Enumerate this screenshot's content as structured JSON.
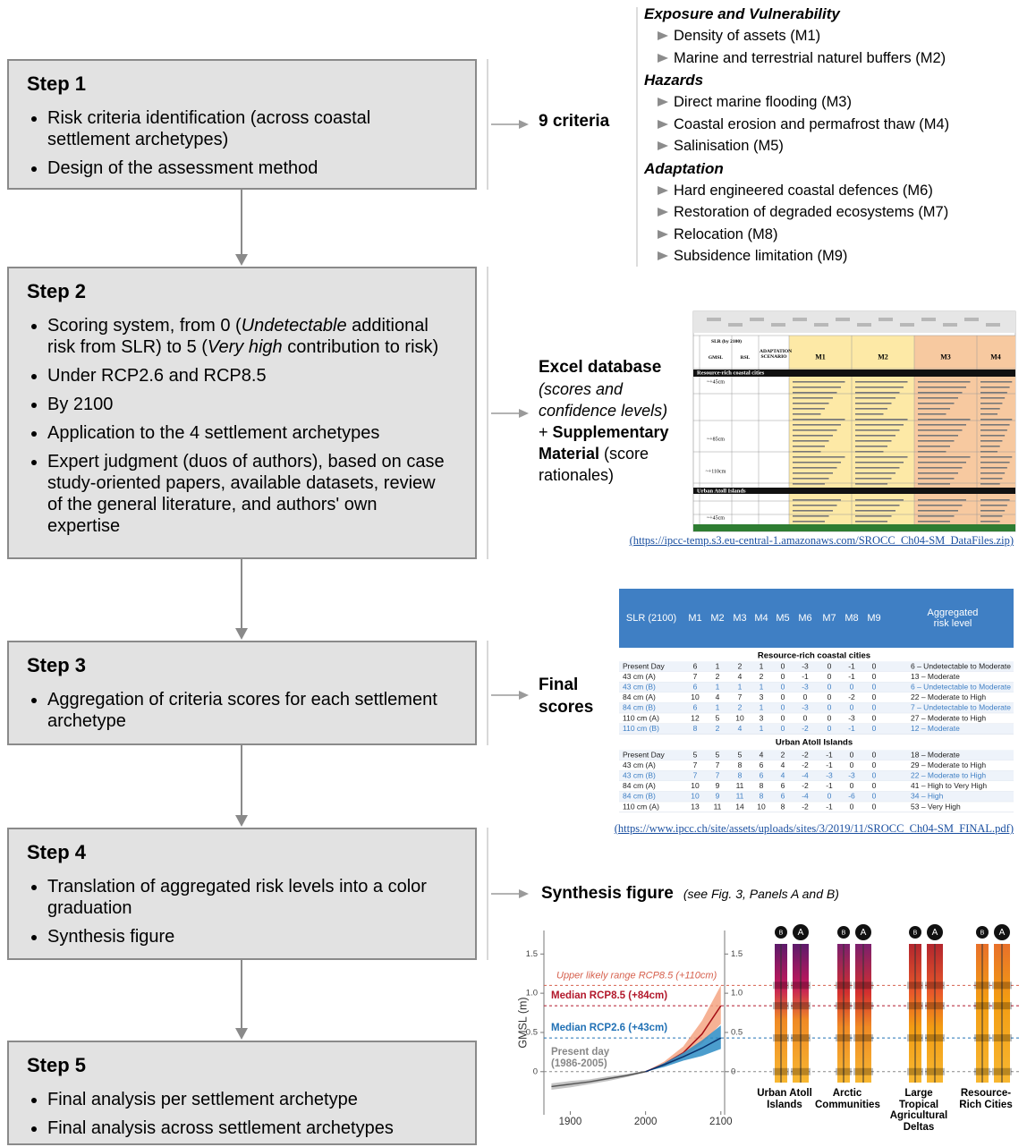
{
  "steps": [
    {
      "title": "Step 1",
      "bullets": [
        [
          "Risk criteria identification (across coastal settlement archetypes)"
        ],
        [
          "Design of the assessment method"
        ]
      ]
    },
    {
      "title": "Step 2",
      "bullets": [
        [
          "Scoring system, from 0 (",
          "Undetectable",
          " additional risk from SLR) to 5 (",
          "Very high",
          " contribution to risk)"
        ],
        [
          "Under RCP2.6 and RCP8.5"
        ],
        [
          "By 2100"
        ],
        [
          "Application to the 4 settlement archetypes"
        ],
        [
          "Expert judgment (duos of authors), based on case study-oriented papers, available datasets, review of the general literature, and authors' own expertise"
        ]
      ]
    },
    {
      "title": "Step 3",
      "bullets": [
        [
          "Aggregation of criteria scores for each settlement archetype"
        ]
      ]
    },
    {
      "title": "Step 4",
      "bullets": [
        [
          "Translation of aggregated risk levels into a color graduation"
        ],
        [
          "Synthesis figure"
        ]
      ]
    },
    {
      "title": "Step 5",
      "bullets": [
        [
          "Final analysis per settlement archetype"
        ],
        [
          "Final analysis across settlement archetypes"
        ]
      ]
    }
  ],
  "outputs": {
    "criteria": {
      "label": "9 criteria",
      "groups": [
        {
          "heading": "Exposure and Vulnerability",
          "items": [
            "Density of assets (M1)",
            "Marine and terrestrial naturel buffers (M2)"
          ]
        },
        {
          "heading": "Hazards",
          "items": [
            "Direct marine flooding (M3)",
            "Coastal erosion and permafrost thaw (M4)",
            "Salinisation (M5)"
          ]
        },
        {
          "heading": "Adaptation",
          "items": [
            "Hard engineered coastal defences (M6)",
            "Restoration of degraded ecosystems (M7)",
            "Relocation (M8)",
            "Subsidence limitation (M9)"
          ]
        }
      ]
    },
    "excel": {
      "label": "Excel database",
      "description": "(scores and confidence levels)",
      "plus": "+",
      "supplement": "Supplementary Material",
      "supplement_note": "(score rationales)",
      "link": "(https://ipcc-temp.s3.eu-central-1.amazonaws.com/SROCC_Ch04-SM_DataFiles.zip)",
      "sheet": {
        "headers": [
          "SLR (by 2100)",
          "GMSL",
          "RSL",
          "ADAPTATION SCENARIO",
          "M1",
          "M2",
          "M3",
          "M4"
        ],
        "sections": [
          "Resource-rich coastal cities",
          "Urban Atoll Islands"
        ],
        "gmsl": [
          "~+45cm",
          "~+85cm",
          "~+110cm",
          "~+45cm"
        ]
      }
    },
    "final_scores": {
      "label": "Final scores",
      "link": "(https://www.ipcc.ch/site/assets/uploads/sites/3/2019/11/SROCC_Ch04-SM_FINAL.pdf)",
      "table": {
        "columns": [
          "SLR (2100)",
          "M1",
          "M2",
          "M3",
          "M4",
          "M5",
          "M6",
          "M7",
          "M8",
          "M9",
          "Aggregated risk level"
        ],
        "sections": [
          {
            "name": "Resource-rich coastal cities",
            "rows": [
              [
                "Present Day",
                6,
                1,
                2,
                1,
                0,
                -3,
                0,
                -1,
                0,
                "6 – Undetectable to Moderate"
              ],
              [
                "43 cm (A)",
                7,
                2,
                4,
                2,
                0,
                -1,
                0,
                -1,
                0,
                "13 – Moderate"
              ],
              [
                "43 cm (B)",
                6,
                1,
                1,
                1,
                0,
                -3,
                0,
                0,
                0,
                "6 – Undetectable to Moderate"
              ],
              [
                "84 cm (A)",
                10,
                4,
                7,
                3,
                0,
                0,
                0,
                -2,
                0,
                "22 – Moderate to High"
              ],
              [
                "84 cm (B)",
                6,
                1,
                2,
                1,
                0,
                -3,
                0,
                0,
                0,
                "7 – Undetectable to Moderate"
              ],
              [
                "110 cm (A)",
                12,
                5,
                10,
                3,
                0,
                0,
                0,
                -3,
                0,
                "27 – Moderate to High"
              ],
              [
                "110 cm (B)",
                8,
                2,
                4,
                1,
                0,
                -2,
                0,
                -1,
                0,
                "12 – Moderate"
              ]
            ]
          },
          {
            "name": "Urban Atoll Islands",
            "rows": [
              [
                "Present Day",
                5,
                5,
                5,
                4,
                2,
                -2,
                -1,
                0,
                0,
                "18 – Moderate"
              ],
              [
                "43 cm (A)",
                7,
                7,
                8,
                6,
                4,
                -2,
                -1,
                0,
                0,
                "29 – Moderate to High"
              ],
              [
                "43 cm (B)",
                7,
                7,
                8,
                6,
                4,
                -4,
                -3,
                -3,
                0,
                "22 – Moderate to High"
              ],
              [
                "84 cm (A)",
                10,
                9,
                11,
                8,
                6,
                -2,
                -1,
                0,
                0,
                "41 – High to Very High"
              ],
              [
                "84 cm (B)",
                10,
                9,
                11,
                8,
                6,
                -4,
                0,
                -6,
                0,
                "34 – High"
              ],
              [
                "110 cm (A)",
                13,
                11,
                14,
                10,
                8,
                -2,
                -1,
                0,
                0,
                "53 – Very High"
              ]
            ]
          }
        ]
      }
    },
    "synthesis": {
      "label": "Synthesis figure",
      "note": "(see Fig. 3, Panels A and B)",
      "chart": {
        "type": "line",
        "ylabel": "GMSL (m)",
        "xlim": [
          1865,
          2105
        ],
        "xticks": [
          1900,
          2000,
          2100
        ],
        "ylim": [
          -0.55,
          1.8
        ],
        "yticks": [
          0,
          0.5,
          {
            "value": 1,
            "label": "1.0"
          },
          1.5
        ],
        "series": [
          {
            "color": "#555555",
            "band_color": "#bbbbbb",
            "x": [
              1875,
              1900,
              1925,
              1950,
              1975,
              2000
            ],
            "values": [
              -0.19,
              -0.16,
              -0.13,
              -0.09,
              -0.05,
              0
            ],
            "low": [
              -0.23,
              -0.2,
              -0.16,
              -0.12,
              -0.07,
              -0.01
            ],
            "high": [
              -0.15,
              -0.12,
              -0.1,
              -0.06,
              -0.03,
              0.01
            ]
          },
          {
            "color": "#a50f15",
            "band_color": "#f4a582",
            "x": [
              2000,
              2025,
              2050,
              2075,
              2100
            ],
            "values": [
              0,
              0.1,
              0.24,
              0.48,
              0.84
            ],
            "low": [
              0,
              0.07,
              0.18,
              0.36,
              0.61
            ],
            "high": [
              0,
              0.13,
              0.32,
              0.65,
              1.1
            ]
          },
          {
            "color": "#08306b",
            "band_color": "#2b8cc4",
            "x": [
              2000,
              2025,
              2050,
              2075,
              2100
            ],
            "values": [
              0,
              0.09,
              0.19,
              0.3,
              0.43
            ],
            "low": [
              0,
              0.06,
              0.14,
              0.2,
              0.29
            ],
            "high": [
              0,
              0.11,
              0.24,
              0.4,
              0.59
            ]
          }
        ],
        "annotations": [
          {
            "text": "Upper likely range RCP8.5 (+110cm)",
            "value": 1.1,
            "color": "#d6604d"
          },
          {
            "text": "Median RCP8.5 (+84cm)",
            "value": 0.84,
            "color": "#b2182b"
          },
          {
            "text": "Median RCP2.6 (+43cm)",
            "value": 0.43,
            "color": "#2171b5"
          },
          {
            "text": "Present day",
            "sub": "(1986-2005)",
            "value": 0,
            "color": "#888888"
          }
        ]
      },
      "scenarios": [
        "B",
        "A"
      ],
      "archetypes": [
        "Urban Atoll Islands",
        "Arctic Communities",
        "Large Tropical Agricultural Deltas",
        "Resource-Rich Cities"
      ]
    }
  }
}
